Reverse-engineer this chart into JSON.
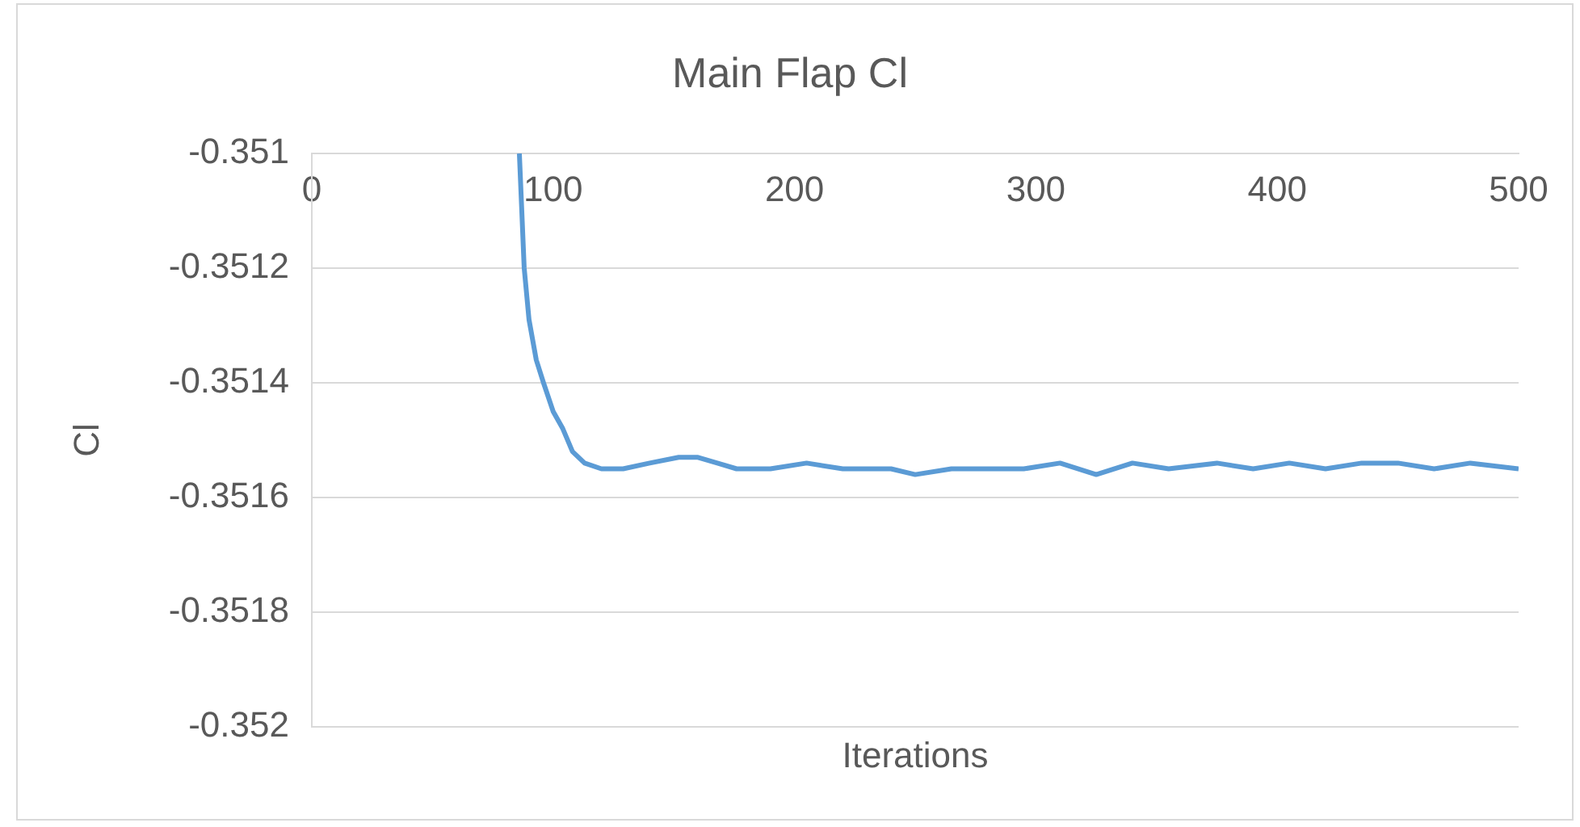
{
  "chart_data": {
    "type": "line",
    "title": "Main Flap Cl",
    "xlabel": "Iterations",
    "ylabel": "Cl",
    "xlim": [
      0,
      500
    ],
    "xticks": [
      0,
      100,
      200,
      300,
      400,
      500
    ],
    "ylim": [
      -0.352,
      -0.351
    ],
    "yticks": [
      {
        "value": -0.351,
        "label": "-0.351"
      },
      {
        "value": -0.3512,
        "label": "-0.3512"
      },
      {
        "value": -0.3514,
        "label": "-0.3514"
      },
      {
        "value": -0.3516,
        "label": "-0.3516"
      },
      {
        "value": -0.3518,
        "label": "-0.3518"
      },
      {
        "value": -0.352,
        "label": "-0.352"
      }
    ],
    "grid": "y",
    "legend": false,
    "marker": "none",
    "line_style": "solid",
    "series": [
      {
        "color": "#5b9bd5",
        "x": [
          86,
          88,
          90,
          93,
          96,
          100,
          104,
          108,
          113,
          120,
          129,
          140,
          152,
          160,
          168,
          176,
          190,
          205,
          220,
          240,
          250,
          265,
          280,
          295,
          310,
          325,
          340,
          355,
          375,
          390,
          405,
          420,
          435,
          450,
          465,
          480,
          500
        ],
        "values": [
          -0.351,
          -0.3512,
          -0.35129,
          -0.35136,
          -0.3514,
          -0.35145,
          -0.35148,
          -0.35152,
          -0.35154,
          -0.35155,
          -0.35155,
          -0.35154,
          -0.35153,
          -0.35153,
          -0.35154,
          -0.35155,
          -0.35155,
          -0.35154,
          -0.35155,
          -0.35155,
          -0.35156,
          -0.35155,
          -0.35155,
          -0.35155,
          -0.35154,
          -0.35156,
          -0.35154,
          -0.35155,
          -0.35154,
          -0.35155,
          -0.35154,
          -0.35155,
          -0.35154,
          -0.35154,
          -0.35155,
          -0.35154,
          -0.35155
        ]
      }
    ]
  }
}
